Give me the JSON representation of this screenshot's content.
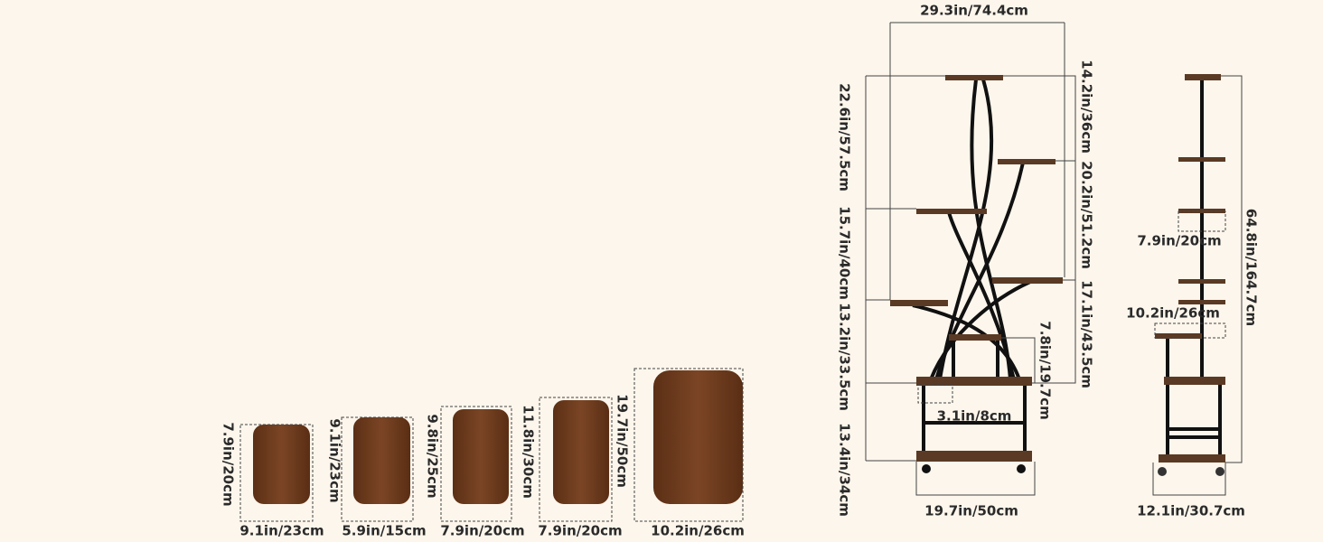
{
  "boards": [
    {
      "height": "7.9in/20cm",
      "width": "9.1in/23cm"
    },
    {
      "height": "9.1in/23cm",
      "width": "5.9in/15cm"
    },
    {
      "height": "9.8in/25cm",
      "width": "7.9in/20cm"
    },
    {
      "height": "11.8in/30cm",
      "width": "7.9in/20cm"
    },
    {
      "height": "19.7in/50cm",
      "width": "10.2in/26cm"
    }
  ],
  "front_view": {
    "top_width": "29.3in/74.4cm",
    "left_heights": [
      "22.6in/57.5cm",
      "15.7in/40cm",
      "13.2in/33.5cm",
      "13.4in/34cm"
    ],
    "right_heights": [
      "14.2in/36cm",
      "20.2in/51.2cm",
      "17.1in/43.5cm"
    ],
    "inner_height": "7.8in/19.7cm",
    "gap": "3.1in/8cm",
    "base_width": "19.7in/50cm"
  },
  "side_view": {
    "shelf_gap": "7.9in/20cm",
    "lower_width": "10.2in/26cm",
    "total_height": "64.8in/164.7cm",
    "base_width": "12.1in/30.7cm"
  }
}
